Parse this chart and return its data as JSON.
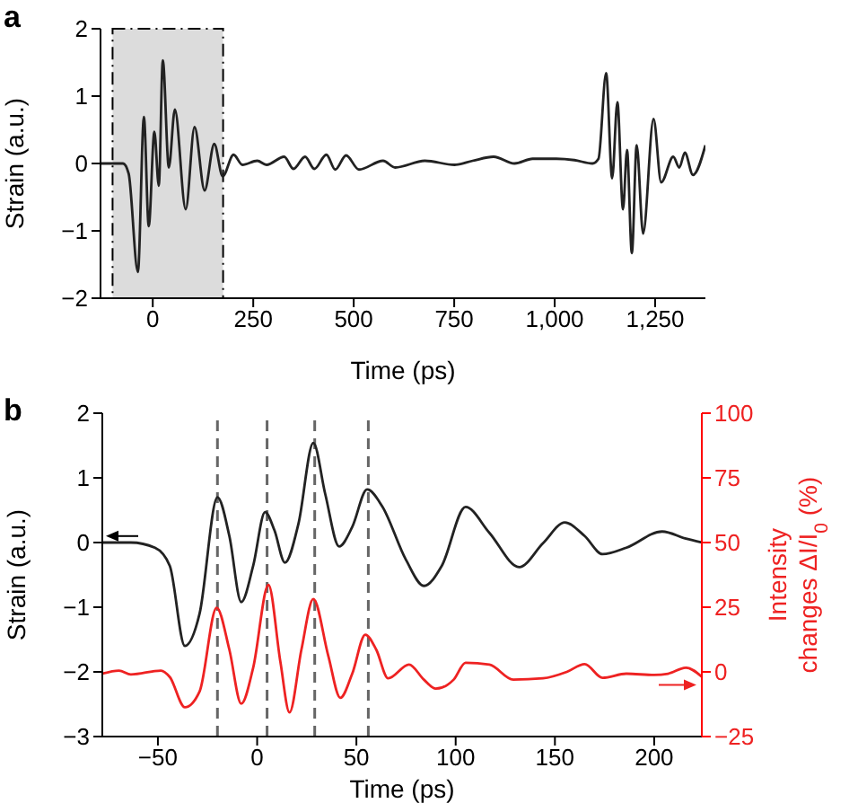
{
  "chart_data": [
    {
      "type": "line",
      "title": "a",
      "xlabel": "Time (ps)",
      "ylabel": "Strain (a.u.)",
      "xlim": [
        -130,
        1375
      ],
      "xticks": [
        0,
        250,
        500,
        750,
        {
          "value": 1000,
          "label": "1,000"
        },
        {
          "value": 1250,
          "label": "1,250"
        }
      ],
      "ylim": [
        -2,
        2
      ],
      "yticks": [
        {
          "value": -2,
          "label": "−2"
        },
        {
          "value": -1,
          "label": "−1"
        },
        0,
        1,
        2
      ],
      "grid": false,
      "bands": [
        {
          "axis": "x",
          "from": -100,
          "to": 175,
          "color": "#dcdcdc"
        }
      ],
      "series": [
        {
          "color": "#222222",
          "x": [
            -130,
            -74,
            -60,
            -37,
            -22,
            -10,
            4,
            15,
            25,
            40,
            55,
            82,
            104,
            129,
            153,
            174,
            201,
            223,
            260,
            283,
            327,
            350,
            379,
            402,
            432,
            454,
            481,
            513,
            573,
            603,
            677,
            751,
            796,
            848,
            900,
            945,
            1004,
            1049,
            1094,
            1109,
            1128,
            1143,
            1156,
            1170,
            1180,
            1192,
            1204,
            1220,
            1246,
            1265,
            1295,
            1310,
            1324,
            1344,
            1375
          ],
          "values": [
            0,
            0,
            -0.15,
            -1.61,
            0.69,
            -0.93,
            0.47,
            -0.33,
            1.53,
            -0.06,
            0.8,
            -0.68,
            0.54,
            -0.4,
            0.29,
            -0.19,
            0.13,
            -0.02,
            0.04,
            -0.02,
            0.1,
            -0.08,
            0.1,
            -0.08,
            0.13,
            -0.09,
            0.12,
            -0.09,
            0.04,
            -0.06,
            0.04,
            -0.02,
            0.04,
            0.1,
            0,
            0.07,
            0.07,
            0.05,
            0,
            0.07,
            1.34,
            -0.22,
            0.91,
            -0.68,
            0.2,
            -1.33,
            0.27,
            -1.04,
            0.66,
            -0.28,
            0.1,
            -0.06,
            0.16,
            -0.17,
            0.27
          ]
        }
      ]
    },
    {
      "type": "line",
      "title": "b",
      "xlabel": "Time (ps)",
      "ylabel": "Strain (a.u.)",
      "y2label": "Intensity changes ΔI/I$_{0}$ (%)",
      "xlim": [
        -78,
        224
      ],
      "xticks": [
        {
          "value": -50,
          "label": "−50"
        },
        0,
        50,
        100,
        150,
        200
      ],
      "ylim": [
        -3,
        2
      ],
      "yticks": [
        {
          "value": -3,
          "label": "−3"
        },
        {
          "value": -2,
          "label": "−2"
        },
        {
          "value": -1,
          "label": "−1"
        },
        0,
        1,
        2
      ],
      "y2lim": [
        -25,
        100
      ],
      "y2ticks": [
        {
          "value": -25,
          "label": "−25"
        },
        0,
        25,
        50,
        75,
        100
      ],
      "grid": false,
      "ref_lines": [
        {
          "axis": "x",
          "value": -20,
          "color": "#666666",
          "line_style": "dashed"
        },
        {
          "axis": "x",
          "value": 5,
          "color": "#666666",
          "line_style": "dashed"
        },
        {
          "axis": "x",
          "value": 29,
          "color": "#666666",
          "line_style": "dashed"
        },
        {
          "axis": "x",
          "value": 56,
          "color": "#666666",
          "line_style": "dashed"
        }
      ],
      "series": [
        {
          "color": "#222222",
          "x": [
            -78,
            -63.6,
            -51.5,
            -44,
            -36.4,
            -29,
            -20,
            -14,
            -8,
            -2,
            4,
            8.7,
            14,
            20.8,
            28.3,
            34.3,
            41.3,
            47.9,
            55.4,
            63,
            75,
            84,
            93,
            105,
            117,
            132,
            144,
            155,
            165,
            174,
            186,
            204,
            216,
            224
          ],
          "values": [
            0,
            0,
            -0.08,
            -0.36,
            -1.6,
            -1.1,
            0.7,
            0.1,
            -0.92,
            -0.36,
            0.47,
            0.19,
            -0.31,
            0.29,
            1.54,
            0.75,
            -0.06,
            0.24,
            0.82,
            0.56,
            -0.27,
            -0.67,
            -0.36,
            0.55,
            0.15,
            -0.38,
            -0.01,
            0.31,
            0.1,
            -0.18,
            -0.08,
            0.17,
            0.06,
            0
          ]
        },
        {
          "color": "#ee2222",
          "axis": "y2",
          "x": [
            -78,
            -69.6,
            -63.6,
            -48.5,
            -44,
            -36.4,
            -29,
            -20.4,
            -14,
            -8,
            -2,
            5.7,
            11.7,
            16.3,
            22.3,
            28.3,
            35.8,
            41.9,
            47.9,
            54.5,
            60,
            66,
            76.5,
            84,
            90,
            99,
            105,
            117,
            129,
            144,
            156,
            165,
            174,
            186,
            200,
            207,
            216,
            224
          ],
          "values": [
            -0.7,
            0.5,
            -1,
            0.5,
            -2,
            -13.7,
            -7.6,
            24.8,
            8.6,
            -12.3,
            1.6,
            33.6,
            3.9,
            -15.7,
            8.6,
            28.2,
            6.3,
            -10,
            -0.7,
            14.4,
            8.6,
            -2.5,
            2.8,
            -3,
            -6.5,
            -3,
            3.5,
            2.8,
            -3,
            -2.5,
            0,
            3,
            -2.3,
            -0.7,
            -1.2,
            -0.7,
            1.6,
            -1.9
          ]
        }
      ]
    }
  ]
}
